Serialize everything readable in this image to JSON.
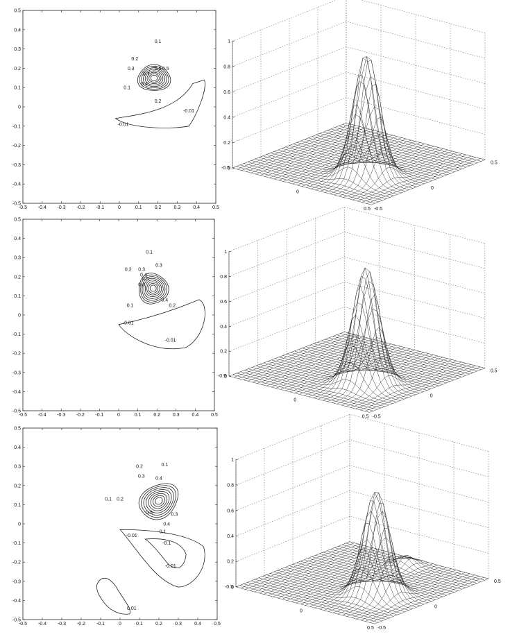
{
  "chart_data": [
    {
      "type": "contour",
      "panel": "top-left",
      "xlim": [
        -0.5,
        0.5
      ],
      "ylim": [
        -0.5,
        0.5
      ],
      "xticks": [
        "-0.5",
        "-0.4",
        "-0.3",
        "-0.2",
        "-0.1",
        "0",
        "0.1",
        "0.2",
        "0.3",
        "0.4",
        "0.5"
      ],
      "yticks": [
        "0.5",
        "0.4",
        "0.3",
        "0.2",
        "0.1",
        "0",
        "-0.1",
        "-0.2",
        "-0.3",
        "-0.4",
        "-0.5"
      ],
      "contour_labels": [
        "0.1",
        "0.2",
        "0.3",
        "0.4",
        "0.5",
        "0.6",
        "0.7",
        "0.2",
        "0.1",
        "-0.01",
        "-0.01"
      ],
      "positive_peak": {
        "x": 0.18,
        "y": 0.15
      },
      "negative_lobe": {
        "x": 0.3,
        "y": -0.05,
        "level": -0.01
      }
    },
    {
      "type": "surface",
      "panel": "top-right",
      "zlim": [
        0,
        1
      ],
      "zticks": [
        "0",
        "0.2",
        "0.4",
        "0.6",
        "0.8",
        "1"
      ],
      "xticks": [
        "-0.5",
        "0",
        "0.5"
      ],
      "yticks": [
        "-0.5",
        "0",
        "0.5"
      ],
      "peak": {
        "x": 0.18,
        "y": 0.15,
        "z": 0.98
      },
      "grid": true
    },
    {
      "type": "contour",
      "panel": "middle-left",
      "xlim": [
        -0.5,
        0.5
      ],
      "ylim": [
        -0.5,
        0.5
      ],
      "xticks": [
        "-0.5",
        "-0.4",
        "-0.3",
        "-0.2",
        "-0.1",
        "0",
        "0.1",
        "0.2",
        "0.3",
        "0.4",
        "0.5"
      ],
      "yticks": [
        "0.5",
        "0.4",
        "0.3",
        "0.2",
        "0.1",
        "0",
        "-0.1",
        "-0.2",
        "-0.3",
        "-0.4",
        "-0.5"
      ],
      "contour_labels": [
        "0.1",
        "0.2",
        "0.3",
        "0.4",
        "0.5",
        "0.6",
        "0.3",
        "0.4",
        "0.2",
        "0.1",
        "-0.01",
        "-0.01"
      ],
      "positive_peak": {
        "x": 0.18,
        "y": 0.14
      },
      "negative_lobe": {
        "x": 0.3,
        "y": -0.06,
        "level": -0.01
      }
    },
    {
      "type": "surface",
      "panel": "middle-right",
      "zlim": [
        0,
        1
      ],
      "zticks": [
        "0",
        "0.2",
        "0.4",
        "0.6",
        "0.8",
        "1"
      ],
      "xticks": [
        "-0.5",
        "0",
        "0.5"
      ],
      "yticks": [
        "-0.5",
        "0",
        "0.5"
      ],
      "peak": {
        "x": 0.18,
        "y": 0.14,
        "z": 0.95
      },
      "grid": true
    },
    {
      "type": "contour",
      "panel": "bottom-left",
      "xlim": [
        -0.5,
        0.5
      ],
      "ylim": [
        -0.5,
        0.5
      ],
      "xticks": [
        "-0.5",
        "-0.4",
        "-0.3",
        "-0.2",
        "-0.1",
        "0",
        "0.1",
        "0.2",
        "0.3",
        "0.4",
        "0.5"
      ],
      "yticks": [
        "0.5",
        "0.4",
        "0.3",
        "0.2",
        "0.1",
        "0",
        "-0.1",
        "-0.2",
        "-0.3",
        "-0.4",
        "-0.5"
      ],
      "contour_labels": [
        "0.1",
        "0.2",
        "0.3",
        "0.4",
        "0.1",
        "0.2",
        "0.5",
        "0.4",
        "0.3",
        "0.1",
        "-0.01",
        "-0.1",
        "-0.01",
        "0.01"
      ],
      "positive_peak": {
        "x": 0.2,
        "y": 0.12
      },
      "negative_lobe": {
        "x": 0.25,
        "y": -0.15,
        "level": -0.1
      },
      "small_lobe": {
        "x": 0.0,
        "y": -0.38,
        "level": 0.01
      }
    },
    {
      "type": "surface",
      "panel": "bottom-right",
      "zlim": [
        0,
        1
      ],
      "zticks": [
        "0",
        "0.2",
        "0.4",
        "0.6",
        "0.8",
        "1"
      ],
      "xticks": [
        "-0.5",
        "0",
        "0.5"
      ],
      "yticks": [
        "-0.5",
        "0",
        "0.5"
      ],
      "peak": {
        "x": 0.2,
        "y": 0.12,
        "z": 0.83
      },
      "secondary_bump": {
        "x": 0.0,
        "y": -0.38,
        "z": 0.08
      },
      "grid": true
    }
  ]
}
